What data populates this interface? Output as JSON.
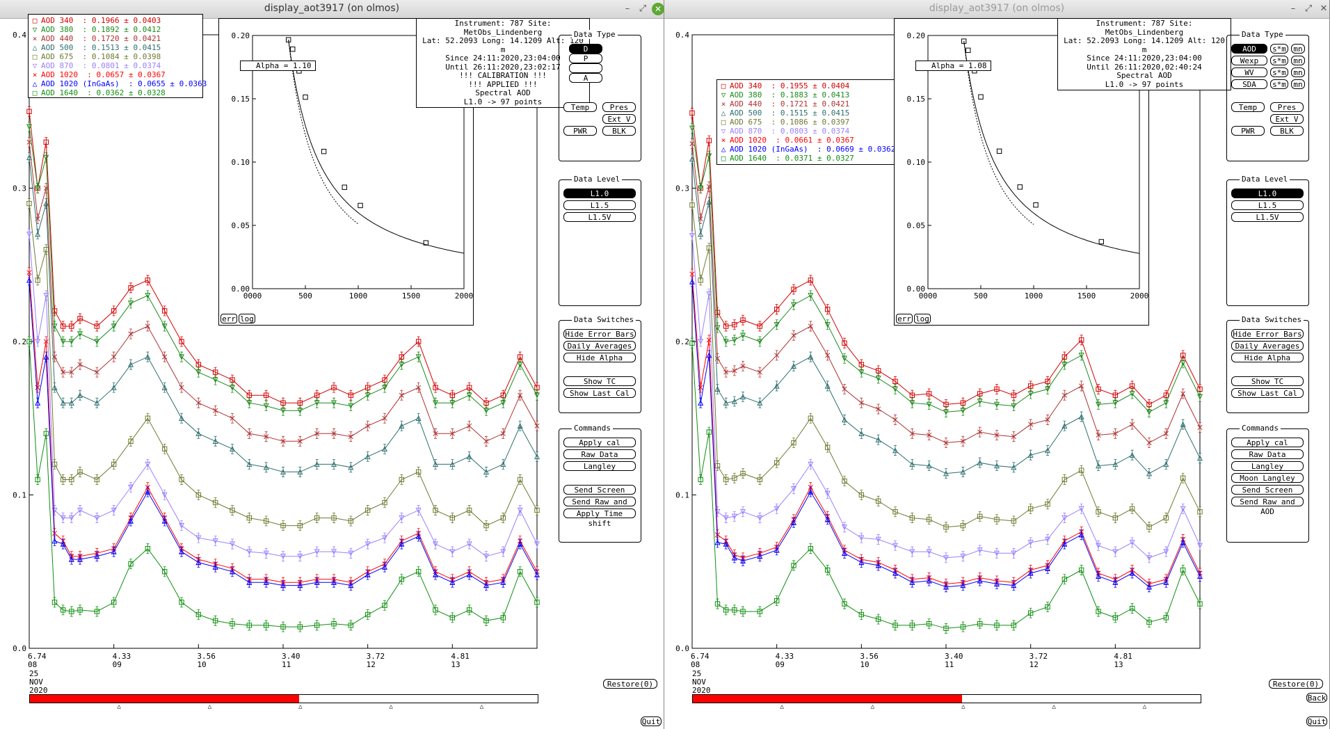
{
  "colors": {
    "aod340": "#d40000",
    "aod380": "#1a8a1a",
    "aod440": "#b03030",
    "aod500": "#2e6e6e",
    "aod675": "#6e7a30",
    "aod870": "#9a80ff",
    "aod1020": "#ff0000",
    "aod1020ingaas": "#0000ff",
    "aod1640": "#0f8f0f",
    "selected": "#000000",
    "progress": "#ff0000"
  },
  "windows": [
    {
      "title": "display_aot3917 (on olmos)",
      "title_active": true,
      "window_controls": {
        "minimize": "–",
        "maximize": "⤢",
        "close": "✕"
      },
      "info_box": [
        "Instrument: 787 Site: MetObs_Lindenberg",
        "Lat: 52.2093 Long: 14.1209 Alt: 120 m",
        "Since 24:11:2020,23:04:00",
        "Until 26:11:2020,23:02:17",
        "!!! CALIBRATION !!!",
        "!!!  APPLIED  !!!",
        "Spectral AOD",
        "L1.0 -> 97 points"
      ],
      "alpha_label": "Alpha = 1.10",
      "legend": [
        {
          "label": "AOD 340  : 0.1966 ± 0.0403",
          "series": "aod340"
        },
        {
          "label": "AOD 380  : 0.1892 ± 0.0412",
          "series": "aod380"
        },
        {
          "label": "AOD 440  : 0.1720 ± 0.0421",
          "series": "aod440"
        },
        {
          "label": "AOD 500  : 0.1513 ± 0.0415",
          "series": "aod500"
        },
        {
          "label": "AOD 675  : 0.1084 ± 0.0398",
          "series": "aod675"
        },
        {
          "label": "AOD 870  : 0.0801 ± 0.0374",
          "series": "aod870"
        },
        {
          "label": "AOD 1020  : 0.0657 ± 0.0367",
          "series": "aod1020"
        },
        {
          "label": "AOD 1020 (InGaAs)  : 0.0655 ± 0.0363",
          "series": "aod1020ingaas"
        },
        {
          "label": "AOD 1640  : 0.0362 ± 0.0328",
          "series": "aod1640"
        }
      ],
      "data_type": {
        "title": "Data Type",
        "buttons": [
          "D",
          "P",
          "",
          "A"
        ],
        "selected_index": 0
      },
      "misc_buttons": [
        "Temp",
        "Pres",
        "Ext V",
        "PWR",
        "BLK"
      ],
      "data_level": {
        "title": "Data Level",
        "buttons": [
          "L1.0",
          "L1.5",
          "L1.5V"
        ],
        "selected_index": 0
      },
      "data_switches": {
        "title": "Data Switches",
        "buttons": [
          "Hide Error Bars",
          "Daily Averages",
          "Hide Alpha",
          "Show TC",
          "Show Last Cal"
        ]
      },
      "commands": {
        "title": "Commands",
        "buttons": [
          "Apply cal",
          "Raw Data",
          "Langley",
          "Send Screen",
          "Send Raw and AOD",
          "Apply Time shift"
        ]
      },
      "restore_label": "Restore(0)",
      "quit_label": "Quit",
      "back_label": "",
      "progress_fraction": 0.53
    },
    {
      "title": "display_aot3917 (on olmos)",
      "title_active": false,
      "window_controls": {
        "minimize": "–",
        "maximize": "⤢",
        "close": "✕"
      },
      "info_box": [
        "Instrument: 787 Site: MetObs_Lindenberg",
        "Lat: 52.2093 Long: 14.1209 Alt: 120 m",
        "Since 24:11:2020,23:04:00",
        "Until 26:11:2020,02:40:24",
        "Spectral AOD",
        "L1.0 -> 97 points"
      ],
      "alpha_label": "Alpha = 1.08",
      "legend": [
        {
          "label": "AOD 340  : 0.1955 ± 0.0404",
          "series": "aod340"
        },
        {
          "label": "AOD 380  : 0.1883 ± 0.0413",
          "series": "aod380"
        },
        {
          "label": "AOD 440  : 0.1721 ± 0.0421",
          "series": "aod440"
        },
        {
          "label": "AOD 500  : 0.1515 ± 0.0415",
          "series": "aod500"
        },
        {
          "label": "AOD 675  : 0.1086 ± 0.0397",
          "series": "aod675"
        },
        {
          "label": "AOD 870  : 0.0803 ± 0.0374",
          "series": "aod870"
        },
        {
          "label": "AOD 1020  : 0.0661 ± 0.0367",
          "series": "aod1020"
        },
        {
          "label": "AOD 1020 (InGaAs)  : 0.0669 ± 0.0362",
          "series": "aod1020ingaas"
        },
        {
          "label": "AOD 1640  : 0.0371 ± 0.0327",
          "series": "aod1640"
        }
      ],
      "data_type": {
        "title": "Data Type",
        "rows": [
          [
            "AOD",
            "s*m",
            "mn"
          ],
          [
            "Wexp",
            "s*m",
            "mn"
          ],
          [
            "WV",
            "s*m",
            "mn"
          ],
          [
            "SDA",
            "s*m",
            "mn"
          ]
        ],
        "selected_index": 0
      },
      "misc_buttons": [
        "Temp",
        "Pres",
        "Ext V",
        "PWR",
        "BLK"
      ],
      "data_level": {
        "title": "Data Level",
        "buttons": [
          "L1.0",
          "L1.5",
          "L1.5V"
        ],
        "selected_index": 0
      },
      "data_switches": {
        "title": "Data Switches",
        "buttons": [
          "Hide Error Bars",
          "Daily Averages",
          "Hide Alpha",
          "Show TC",
          "Show Last Cal"
        ]
      },
      "commands": {
        "title": "Commands",
        "buttons": [
          "Apply cal",
          "Raw Data",
          "Langley",
          "Moon Langley",
          "Send Screen",
          "Send Raw and AOD"
        ]
      },
      "restore_label": "Restore(0)",
      "quit_label": "Quit",
      "back_label": "Back",
      "progress_fraction": 0.53
    }
  ],
  "chart_data": [
    {
      "type": "line",
      "ylim": [
        0,
        0.4
      ],
      "yticks": [
        "0.0",
        "0.1",
        "0.2",
        "0.3",
        "0.4"
      ],
      "xlim": [
        8,
        14
      ],
      "xticks": [
        {
          "value": 8,
          "top": "6.74",
          "bottom": "08"
        },
        {
          "value": 9,
          "top": "4.33",
          "bottom": "09"
        },
        {
          "value": 10,
          "top": "3.56",
          "bottom": "10"
        },
        {
          "value": 11,
          "top": "3.40",
          "bottom": "11"
        },
        {
          "value": 12,
          "top": "3.72",
          "bottom": "12"
        },
        {
          "value": 13,
          "top": "4.81",
          "bottom": "13"
        }
      ],
      "date_label": [
        "25",
        "NOV",
        "2020"
      ],
      "x": [
        8.0,
        8.1,
        8.2,
        8.3,
        8.4,
        8.5,
        8.6,
        8.8,
        9.0,
        9.2,
        9.4,
        9.6,
        9.8,
        10.0,
        10.2,
        10.4,
        10.6,
        10.8,
        11.0,
        11.2,
        11.4,
        11.6,
        11.8,
        12.0,
        12.2,
        12.4,
        12.6,
        12.8,
        13.0,
        13.2,
        13.4,
        13.6,
        13.8,
        14.0
      ],
      "series": [
        {
          "key": "aod340",
          "marker": "square",
          "values": [
            0.35,
            0.3,
            0.33,
            0.22,
            0.21,
            0.21,
            0.215,
            0.21,
            0.22,
            0.235,
            0.24,
            0.22,
            0.2,
            0.185,
            0.18,
            0.175,
            0.165,
            0.165,
            0.16,
            0.16,
            0.165,
            0.17,
            0.165,
            0.17,
            0.175,
            0.19,
            0.2,
            0.17,
            0.165,
            0.17,
            0.16,
            0.165,
            0.19,
            0.17
          ]
        },
        {
          "key": "aod380",
          "marker": "triangle-down",
          "values": [
            0.34,
            0.3,
            0.32,
            0.21,
            0.2,
            0.2,
            0.205,
            0.2,
            0.21,
            0.225,
            0.23,
            0.21,
            0.19,
            0.18,
            0.175,
            0.17,
            0.16,
            0.158,
            0.155,
            0.155,
            0.16,
            0.16,
            0.158,
            0.165,
            0.17,
            0.185,
            0.19,
            0.16,
            0.16,
            0.165,
            0.155,
            0.16,
            0.185,
            0.165
          ]
        },
        {
          "key": "aod440",
          "marker": "x",
          "values": [
            0.33,
            0.28,
            0.3,
            0.19,
            0.18,
            0.18,
            0.185,
            0.18,
            0.19,
            0.205,
            0.21,
            0.19,
            0.17,
            0.16,
            0.155,
            0.15,
            0.14,
            0.138,
            0.135,
            0.135,
            0.14,
            0.14,
            0.138,
            0.145,
            0.15,
            0.165,
            0.17,
            0.14,
            0.14,
            0.145,
            0.135,
            0.14,
            0.165,
            0.145
          ]
        },
        {
          "key": "aod500",
          "marker": "triangle-up",
          "values": [
            0.32,
            0.27,
            0.29,
            0.17,
            0.16,
            0.16,
            0.165,
            0.16,
            0.17,
            0.185,
            0.19,
            0.17,
            0.15,
            0.14,
            0.135,
            0.13,
            0.12,
            0.118,
            0.115,
            0.115,
            0.12,
            0.12,
            0.118,
            0.125,
            0.13,
            0.145,
            0.15,
            0.12,
            0.12,
            0.125,
            0.115,
            0.12,
            0.145,
            0.125
          ]
        },
        {
          "key": "aod675",
          "marker": "square",
          "values": [
            0.29,
            0.24,
            0.26,
            0.12,
            0.11,
            0.11,
            0.115,
            0.11,
            0.12,
            0.135,
            0.15,
            0.13,
            0.11,
            0.1,
            0.095,
            0.09,
            0.085,
            0.083,
            0.08,
            0.08,
            0.085,
            0.085,
            0.083,
            0.09,
            0.095,
            0.11,
            0.115,
            0.09,
            0.085,
            0.09,
            0.08,
            0.085,
            0.11,
            0.09
          ]
        },
        {
          "key": "aod870",
          "marker": "triangle-down",
          "values": [
            0.27,
            0.2,
            0.23,
            0.09,
            0.085,
            0.085,
            0.09,
            0.085,
            0.09,
            0.105,
            0.12,
            0.1,
            0.08,
            0.072,
            0.07,
            0.068,
            0.063,
            0.062,
            0.06,
            0.06,
            0.063,
            0.063,
            0.062,
            0.068,
            0.072,
            0.085,
            0.09,
            0.068,
            0.063,
            0.068,
            0.06,
            0.063,
            0.09,
            0.068
          ]
        },
        {
          "key": "aod1020",
          "marker": "x",
          "values": [
            0.245,
            0.17,
            0.2,
            0.075,
            0.07,
            0.06,
            0.06,
            0.062,
            0.065,
            0.085,
            0.105,
            0.085,
            0.065,
            0.058,
            0.055,
            0.052,
            0.045,
            0.045,
            0.043,
            0.043,
            0.045,
            0.045,
            0.043,
            0.05,
            0.055,
            0.07,
            0.075,
            0.05,
            0.045,
            0.05,
            0.043,
            0.045,
            0.07,
            0.05
          ]
        },
        {
          "key": "aod1020ingaas",
          "marker": "triangle-up",
          "values": [
            0.24,
            0.16,
            0.19,
            0.07,
            0.068,
            0.058,
            0.058,
            0.06,
            0.063,
            0.083,
            0.102,
            0.083,
            0.063,
            0.056,
            0.053,
            0.05,
            0.043,
            0.043,
            0.041,
            0.041,
            0.043,
            0.043,
            0.041,
            0.048,
            0.053,
            0.068,
            0.073,
            0.048,
            0.043,
            0.048,
            0.041,
            0.043,
            0.068,
            0.048
          ]
        },
        {
          "key": "aod1640",
          "marker": "square",
          "values": [
            0.2,
            0.11,
            0.14,
            0.03,
            0.025,
            0.024,
            0.025,
            0.024,
            0.03,
            0.055,
            0.065,
            0.05,
            0.03,
            0.022,
            0.018,
            0.016,
            0.015,
            0.015,
            0.014,
            0.014,
            0.015,
            0.016,
            0.015,
            0.022,
            0.028,
            0.045,
            0.05,
            0.025,
            0.02,
            0.025,
            0.018,
            0.02,
            0.05,
            0.03
          ]
        }
      ]
    },
    {
      "type": "line",
      "ylim": [
        0,
        0.2
      ],
      "yticks": [
        "0.00",
        "0.05",
        "0.10",
        "0.15",
        "0.20"
      ],
      "xlim": [
        0,
        2000
      ],
      "xticks": [
        "0000",
        "500",
        "1000",
        "1500",
        "2000"
      ],
      "x": [
        340,
        380,
        440,
        500,
        675,
        870,
        1020,
        1640
      ],
      "values": [
        0.1966,
        0.1892,
        0.172,
        0.1513,
        0.1084,
        0.0801,
        0.0657,
        0.0362
      ],
      "buttons": [
        "err",
        "log"
      ]
    },
    {
      "type": "line",
      "ylim": [
        0,
        0.2
      ],
      "yticks": [
        "0.00",
        "0.05",
        "0.10",
        "0.15",
        "0.20"
      ],
      "xlim": [
        0,
        2000
      ],
      "xticks": [
        "0000",
        "500",
        "1000",
        "1500",
        "2000"
      ],
      "x": [
        340,
        380,
        440,
        500,
        675,
        870,
        1020,
        1640
      ],
      "values": [
        0.1955,
        0.1883,
        0.1721,
        0.1515,
        0.1086,
        0.0803,
        0.0661,
        0.0371
      ],
      "buttons": [
        "err",
        "log"
      ]
    }
  ]
}
